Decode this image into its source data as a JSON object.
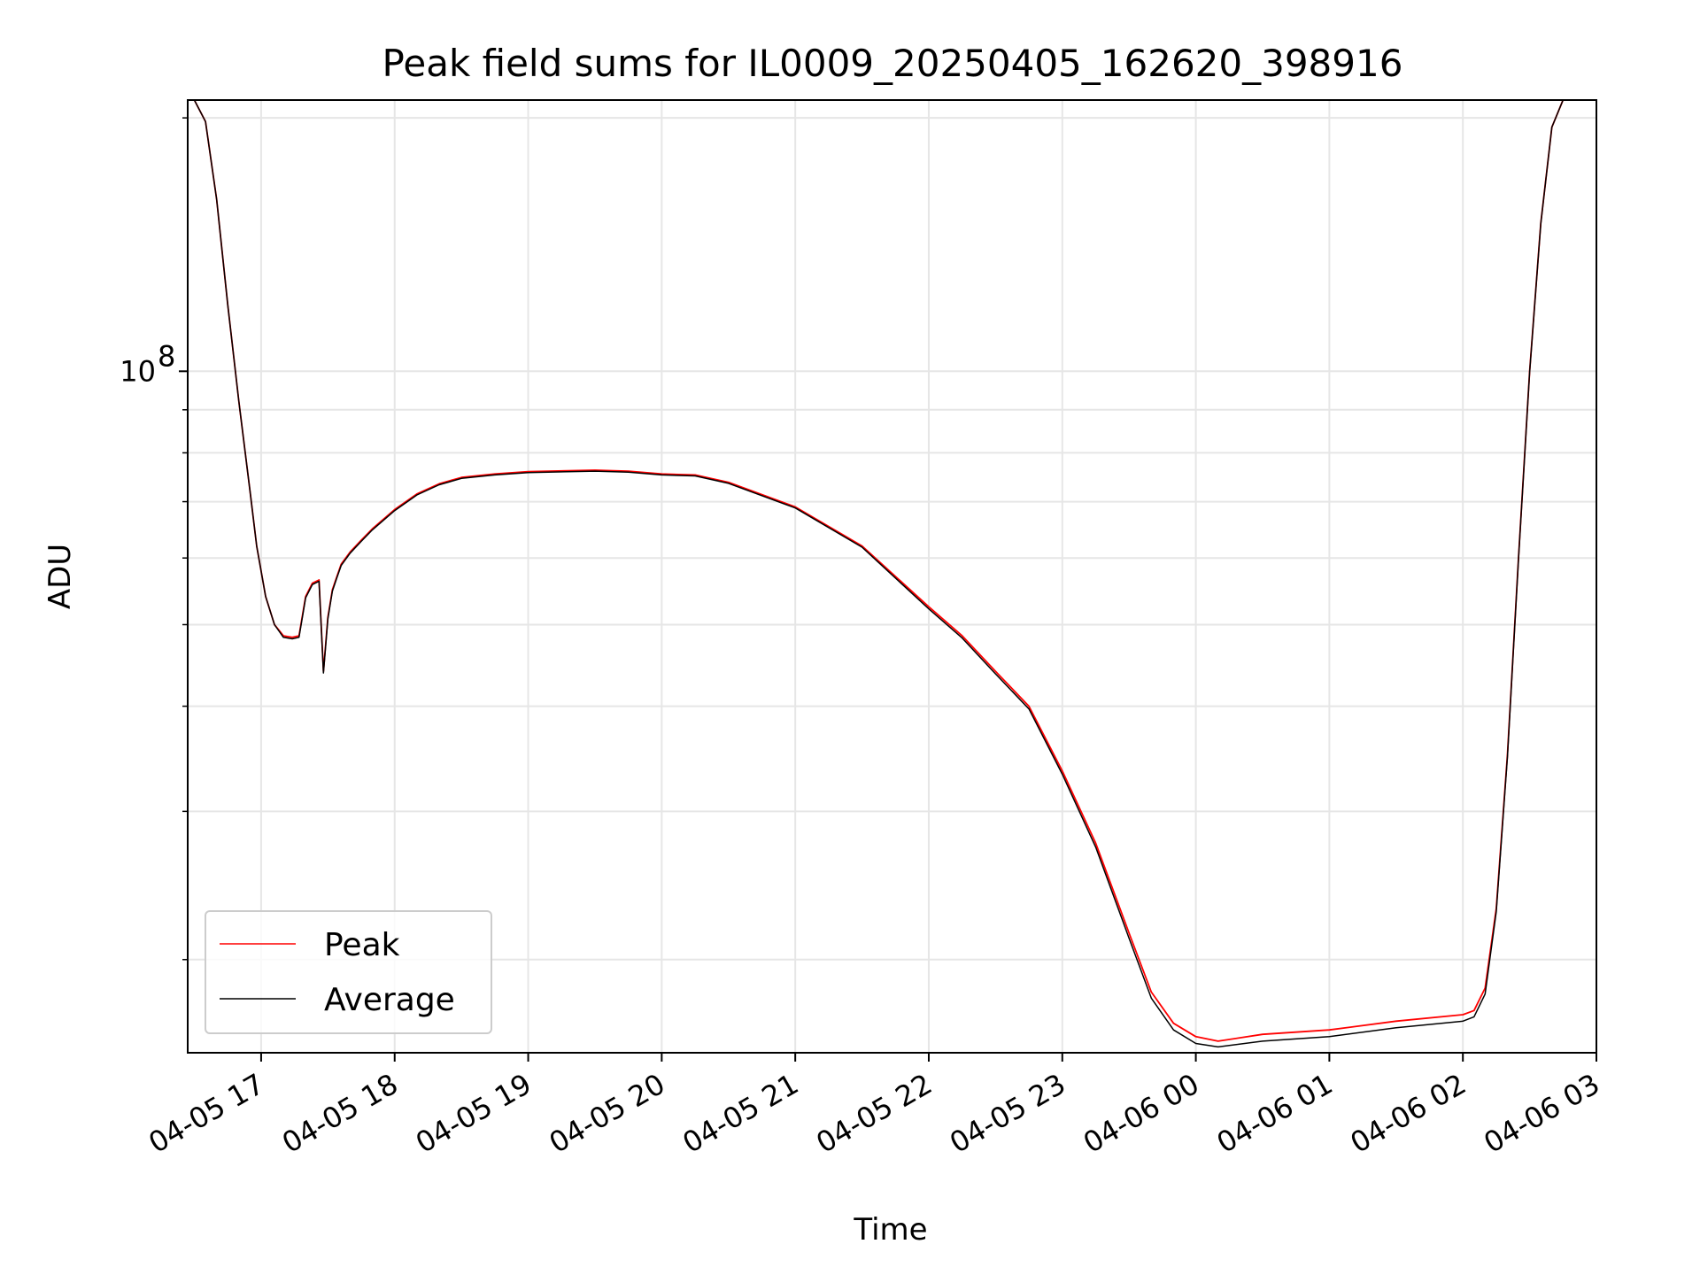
{
  "chart_data": {
    "type": "line",
    "title": "Peak field sums for IL0009_20250405_162620_398916",
    "xlabel": "Time",
    "ylabel": "ADU",
    "y_scale": "log",
    "ylim": [
      15500000,
      210000000
    ],
    "xlim": [
      "04-05 16:27",
      "04-06 03:00"
    ],
    "grid": true,
    "legend_position": "lower-left",
    "x_tick_labels": [
      "04-05 17",
      "04-05 18",
      "04-05 19",
      "04-05 20",
      "04-05 21",
      "04-05 22",
      "04-05 23",
      "04-06 00",
      "04-06 01",
      "04-06 02",
      "04-06 03"
    ],
    "x_ticks": [
      "04-05 17:00",
      "04-05 18:00",
      "04-05 19:00",
      "04-05 20:00",
      "04-05 21:00",
      "04-05 22:00",
      "04-05 23:00",
      "04-06 00:00",
      "04-06 01:00",
      "04-06 02:00",
      "04-06 03:00"
    ],
    "y_tick_label_base": "10",
    "y_tick_label_exp": "8",
    "y_major_ticks": [
      100000000
    ],
    "y_minor_ticks": [
      20000000,
      30000000,
      40000000,
      50000000,
      60000000,
      70000000,
      80000000,
      90000000,
      200000000
    ],
    "x": [
      "04-05 16:27",
      "04-05 16:30",
      "04-05 16:35",
      "04-05 16:40",
      "04-05 16:45",
      "04-05 16:50",
      "04-05 16:55",
      "04-05 16:58",
      "04-05 17:02",
      "04-05 17:06",
      "04-05 17:10",
      "04-05 17:14",
      "04-05 17:17",
      "04-05 17:20",
      "04-05 17:23",
      "04-05 17:26",
      "04-05 17:28",
      "04-05 17:30",
      "04-05 17:32",
      "04-05 17:34",
      "04-05 17:36",
      "04-05 17:40",
      "04-05 17:45",
      "04-05 17:50",
      "04-05 18:00",
      "04-05 18:10",
      "04-05 18:20",
      "04-05 18:30",
      "04-05 18:45",
      "04-05 19:00",
      "04-05 19:30",
      "04-05 19:45",
      "04-05 20:00",
      "04-05 20:15",
      "04-05 20:30",
      "04-05 21:00",
      "04-05 21:30",
      "04-05 22:00",
      "04-05 22:15",
      "04-05 22:30",
      "04-05 22:45",
      "04-05 23:00",
      "04-05 23:15",
      "04-05 23:30",
      "04-05 23:40",
      "04-05 23:50",
      "04-06 00:00",
      "04-06 00:10",
      "04-06 00:30",
      "04-06 01:00",
      "04-06 01:30",
      "04-06 02:00",
      "04-06 02:05",
      "04-06 02:10",
      "04-06 02:15",
      "04-06 02:20",
      "04-06 02:25",
      "04-06 02:30",
      "04-06 02:35",
      "04-06 02:40",
      "04-06 02:45",
      "04-06 02:50",
      "04-06 03:00"
    ],
    "series": [
      {
        "name": "Peak",
        "color": "#ff0000",
        "values": [
          210000000,
          210000000,
          198000000,
          160000000,
          120000000,
          92000000,
          72000000,
          62000000,
          54000000,
          50000000,
          48500000,
          48300000,
          48500000,
          54000000,
          56000000,
          56500000,
          44000000,
          51000000,
          55000000,
          57000000,
          59000000,
          61000000,
          63000000,
          65000000,
          68500000,
          71500000,
          73500000,
          74800000,
          75500000,
          76000000,
          76300000,
          76100000,
          75500000,
          75300000,
          73800000,
          69000000,
          62000000,
          52500000,
          48500000,
          44000000,
          40000000,
          33500000,
          27500000,
          21500000,
          18300000,
          16800000,
          16200000,
          16000000,
          16300000,
          16500000,
          16900000,
          17200000,
          17400000,
          18500000,
          23000000,
          35000000,
          60000000,
          100000000,
          150000000,
          195000000,
          210000000,
          210000000,
          210000000
        ]
      },
      {
        "name": "Average",
        "color": "#000000",
        "values": [
          210000000,
          210000000,
          198000000,
          160000000,
          120000000,
          92000000,
          72000000,
          62000000,
          54000000,
          50000000,
          48300000,
          48100000,
          48300000,
          53800000,
          55800000,
          56300000,
          43800000,
          50800000,
          54800000,
          56800000,
          58800000,
          60800000,
          62800000,
          64800000,
          68300000,
          71300000,
          73300000,
          74600000,
          75300000,
          75800000,
          76100000,
          75900000,
          75300000,
          75100000,
          73600000,
          68800000,
          61800000,
          52200000,
          48200000,
          43700000,
          39700000,
          33200000,
          27200000,
          21200000,
          18000000,
          16500000,
          15900000,
          15750000,
          16000000,
          16200000,
          16600000,
          16900000,
          17100000,
          18200000,
          22800000,
          34800000,
          59800000,
          99800000,
          149800000,
          195000000,
          210000000,
          210000000,
          210000000
        ]
      }
    ]
  }
}
